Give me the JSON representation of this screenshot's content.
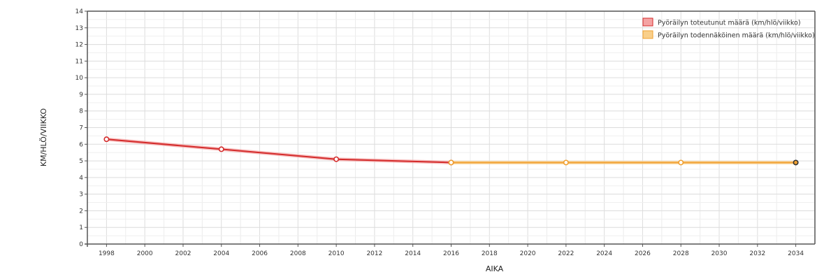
{
  "chart_data": {
    "type": "line",
    "title": "",
    "xlabel": "AIKA",
    "ylabel": "KM/HLÖ/VIIKKO",
    "xlim": [
      1997,
      2035
    ],
    "ylim": [
      0,
      14
    ],
    "x_ticks": [
      1998,
      2000,
      2002,
      2004,
      2006,
      2008,
      2010,
      2012,
      2014,
      2016,
      2018,
      2020,
      2022,
      2024,
      2026,
      2028,
      2030,
      2032,
      2034
    ],
    "y_ticks": [
      0,
      1,
      2,
      3,
      4,
      5,
      6,
      7,
      8,
      9,
      10,
      11,
      12,
      13,
      14
    ],
    "grid": true,
    "legend_position": "top-right",
    "series": [
      {
        "name": "Pyöräilyn toteutunut määrä (km/hlö/viikko)",
        "color": "#d42b2b",
        "fill": "#f4a3a3",
        "x": [
          1998,
          2004,
          2010,
          2016
        ],
        "y": [
          6.3,
          5.7,
          5.1,
          4.9
        ]
      },
      {
        "name": "Pyöräilyn todennäköinen määrä (km/hlö/viikko)",
        "color": "#f0a030",
        "fill": "#f9cf8a",
        "x": [
          2016,
          2022,
          2028,
          2034
        ],
        "y": [
          4.9,
          4.9,
          4.9,
          4.9
        ]
      }
    ]
  }
}
